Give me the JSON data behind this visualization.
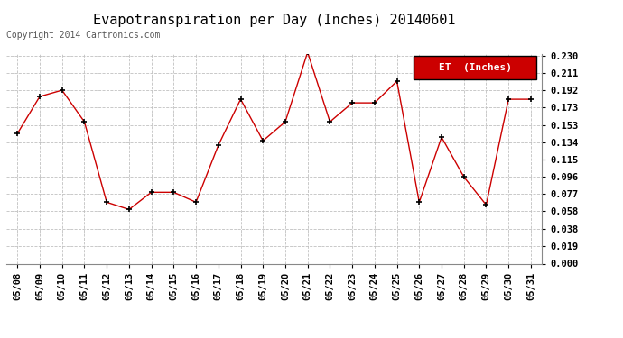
{
  "title": "Evapotranspiration per Day (Inches) 20140601",
  "copyright": "Copyright 2014 Cartronics.com",
  "legend_label": "ET  (Inches)",
  "dates": [
    "05/08",
    "05/09",
    "05/10",
    "05/11",
    "05/12",
    "05/13",
    "05/14",
    "05/15",
    "05/16",
    "05/17",
    "05/18",
    "05/19",
    "05/20",
    "05/21",
    "05/22",
    "05/23",
    "05/24",
    "05/25",
    "05/26",
    "05/27",
    "05/28",
    "05/29",
    "05/30",
    "05/31"
  ],
  "values": [
    0.144,
    0.185,
    0.192,
    0.157,
    0.068,
    0.06,
    0.079,
    0.079,
    0.068,
    0.131,
    0.182,
    0.136,
    0.157,
    0.234,
    0.157,
    0.178,
    0.178,
    0.202,
    0.068,
    0.14,
    0.096,
    0.065,
    0.182,
    0.182
  ],
  "ylim": [
    0.0,
    0.23
  ],
  "yticks": [
    0.0,
    0.019,
    0.038,
    0.058,
    0.077,
    0.096,
    0.115,
    0.134,
    0.153,
    0.173,
    0.192,
    0.211,
    0.23
  ],
  "line_color": "#cc0000",
  "marker_color": "#000000",
  "bg_color": "#ffffff",
  "grid_color": "#c0c0c0",
  "legend_bg": "#cc0000",
  "legend_text_color": "#ffffff",
  "title_fontsize": 11,
  "copyright_fontsize": 7,
  "tick_fontsize": 7.5,
  "legend_fontsize": 8
}
